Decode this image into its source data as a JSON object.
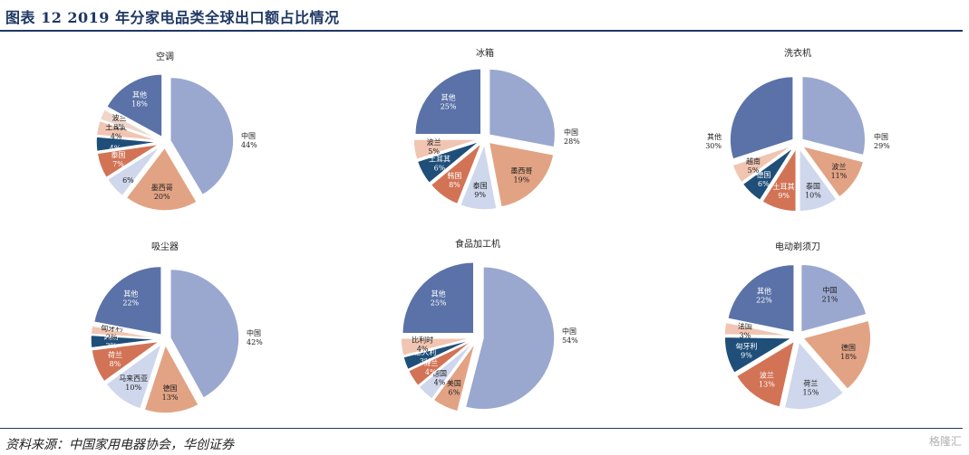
{
  "header": {
    "title": "图表 12   2019 年分家电品类全球出口额占比情况"
  },
  "footer": {
    "source": "资料来源：中国家用电器协会，华创证券"
  },
  "watermark": {
    "text": "格隆汇"
  },
  "chart_data": [
    {
      "type": "pie",
      "title": "空调",
      "slices": [
        {
          "label": "中国",
          "value": 44,
          "color": "#9aa7cf"
        },
        {
          "label": "墨西哥",
          "value": 20,
          "color": "#e2a384"
        },
        {
          "label": "",
          "value": 6,
          "color": "#cfd7ec"
        },
        {
          "label": "泰国",
          "value": 7,
          "color": "#d27356"
        },
        {
          "label": "",
          "value": 4,
          "color": "#1f4e79"
        },
        {
          "label": "土耳其",
          "value": 4,
          "color": "#f0c5b2"
        },
        {
          "label": "波兰",
          "value": 3,
          "color": "#eed6ca"
        },
        {
          "label": "其他",
          "value": 18,
          "color": "#5a72a8"
        }
      ]
    },
    {
      "type": "pie",
      "title": "冰箱",
      "slices": [
        {
          "label": "中国",
          "value": 28,
          "color": "#9aa7cf"
        },
        {
          "label": "墨西哥",
          "value": 19,
          "color": "#e2a384"
        },
        {
          "label": "泰国",
          "value": 9,
          "color": "#cfd7ec"
        },
        {
          "label": "韩国",
          "value": 8,
          "color": "#d27356"
        },
        {
          "label": "土耳其",
          "value": 6,
          "color": "#1f4e79"
        },
        {
          "label": "波兰",
          "value": 5,
          "color": "#f0c5b2"
        },
        {
          "label": "其他",
          "value": 25,
          "color": "#5a72a8"
        }
      ]
    },
    {
      "type": "pie",
      "title": "洗衣机",
      "slices": [
        {
          "label": "中国",
          "value": 29,
          "color": "#9aa7cf"
        },
        {
          "label": "波兰",
          "value": 11,
          "color": "#e2a384"
        },
        {
          "label": "泰国",
          "value": 10,
          "color": "#cfd7ec"
        },
        {
          "label": "土耳其",
          "value": 9,
          "color": "#d27356"
        },
        {
          "label": "德国",
          "value": 6,
          "color": "#1f4e79"
        },
        {
          "label": "越南",
          "value": 5,
          "color": "#f0c5b2"
        },
        {
          "label": "其他",
          "value": 30,
          "color": "#5a72a8"
        }
      ]
    },
    {
      "type": "pie",
      "title": "吸尘器",
      "slices": [
        {
          "label": "中国",
          "value": 42,
          "color": "#9aa7cf"
        },
        {
          "label": "德国",
          "value": 13,
          "color": "#e2a384"
        },
        {
          "label": "马来西亚",
          "value": 10,
          "color": "#cfd7ec"
        },
        {
          "label": "荷兰",
          "value": 8,
          "color": "#d27356"
        },
        {
          "label": "越南",
          "value": 3,
          "color": "#1f4e79"
        },
        {
          "label": "匈牙利",
          "value": 2,
          "color": "#f0c5b2"
        },
        {
          "label": "其他",
          "value": 22,
          "color": "#5a72a8"
        }
      ]
    },
    {
      "type": "pie",
      "title": "食品加工机",
      "slices": [
        {
          "label": "中国",
          "value": 54,
          "color": "#9aa7cf"
        },
        {
          "label": "美国",
          "value": 6,
          "color": "#e2a384"
        },
        {
          "label": "德国",
          "value": 4,
          "color": "#cfd7ec"
        },
        {
          "label": "荷兰",
          "value": 4,
          "color": "#d27356"
        },
        {
          "label": "意大利",
          "value": 3,
          "color": "#1f4e79"
        },
        {
          "label": "比利时",
          "value": 4,
          "color": "#f0c5b2"
        },
        {
          "label": "其他",
          "value": 25,
          "color": "#5a72a8"
        }
      ]
    },
    {
      "type": "pie",
      "title": "电动剃须刀",
      "slices": [
        {
          "label": "中国",
          "value": 21,
          "color": "#9aa7cf"
        },
        {
          "label": "德国",
          "value": 18,
          "color": "#e2a384"
        },
        {
          "label": "荷兰",
          "value": 15,
          "color": "#cfd7ec"
        },
        {
          "label": "波兰",
          "value": 13,
          "color": "#d27356"
        },
        {
          "label": "匈牙利",
          "value": 9,
          "color": "#1f4e79"
        },
        {
          "label": "法国",
          "value": 3,
          "color": "#f0c5b2"
        },
        {
          "label": "其他",
          "value": 22,
          "color": "#5a72a8"
        }
      ]
    }
  ]
}
